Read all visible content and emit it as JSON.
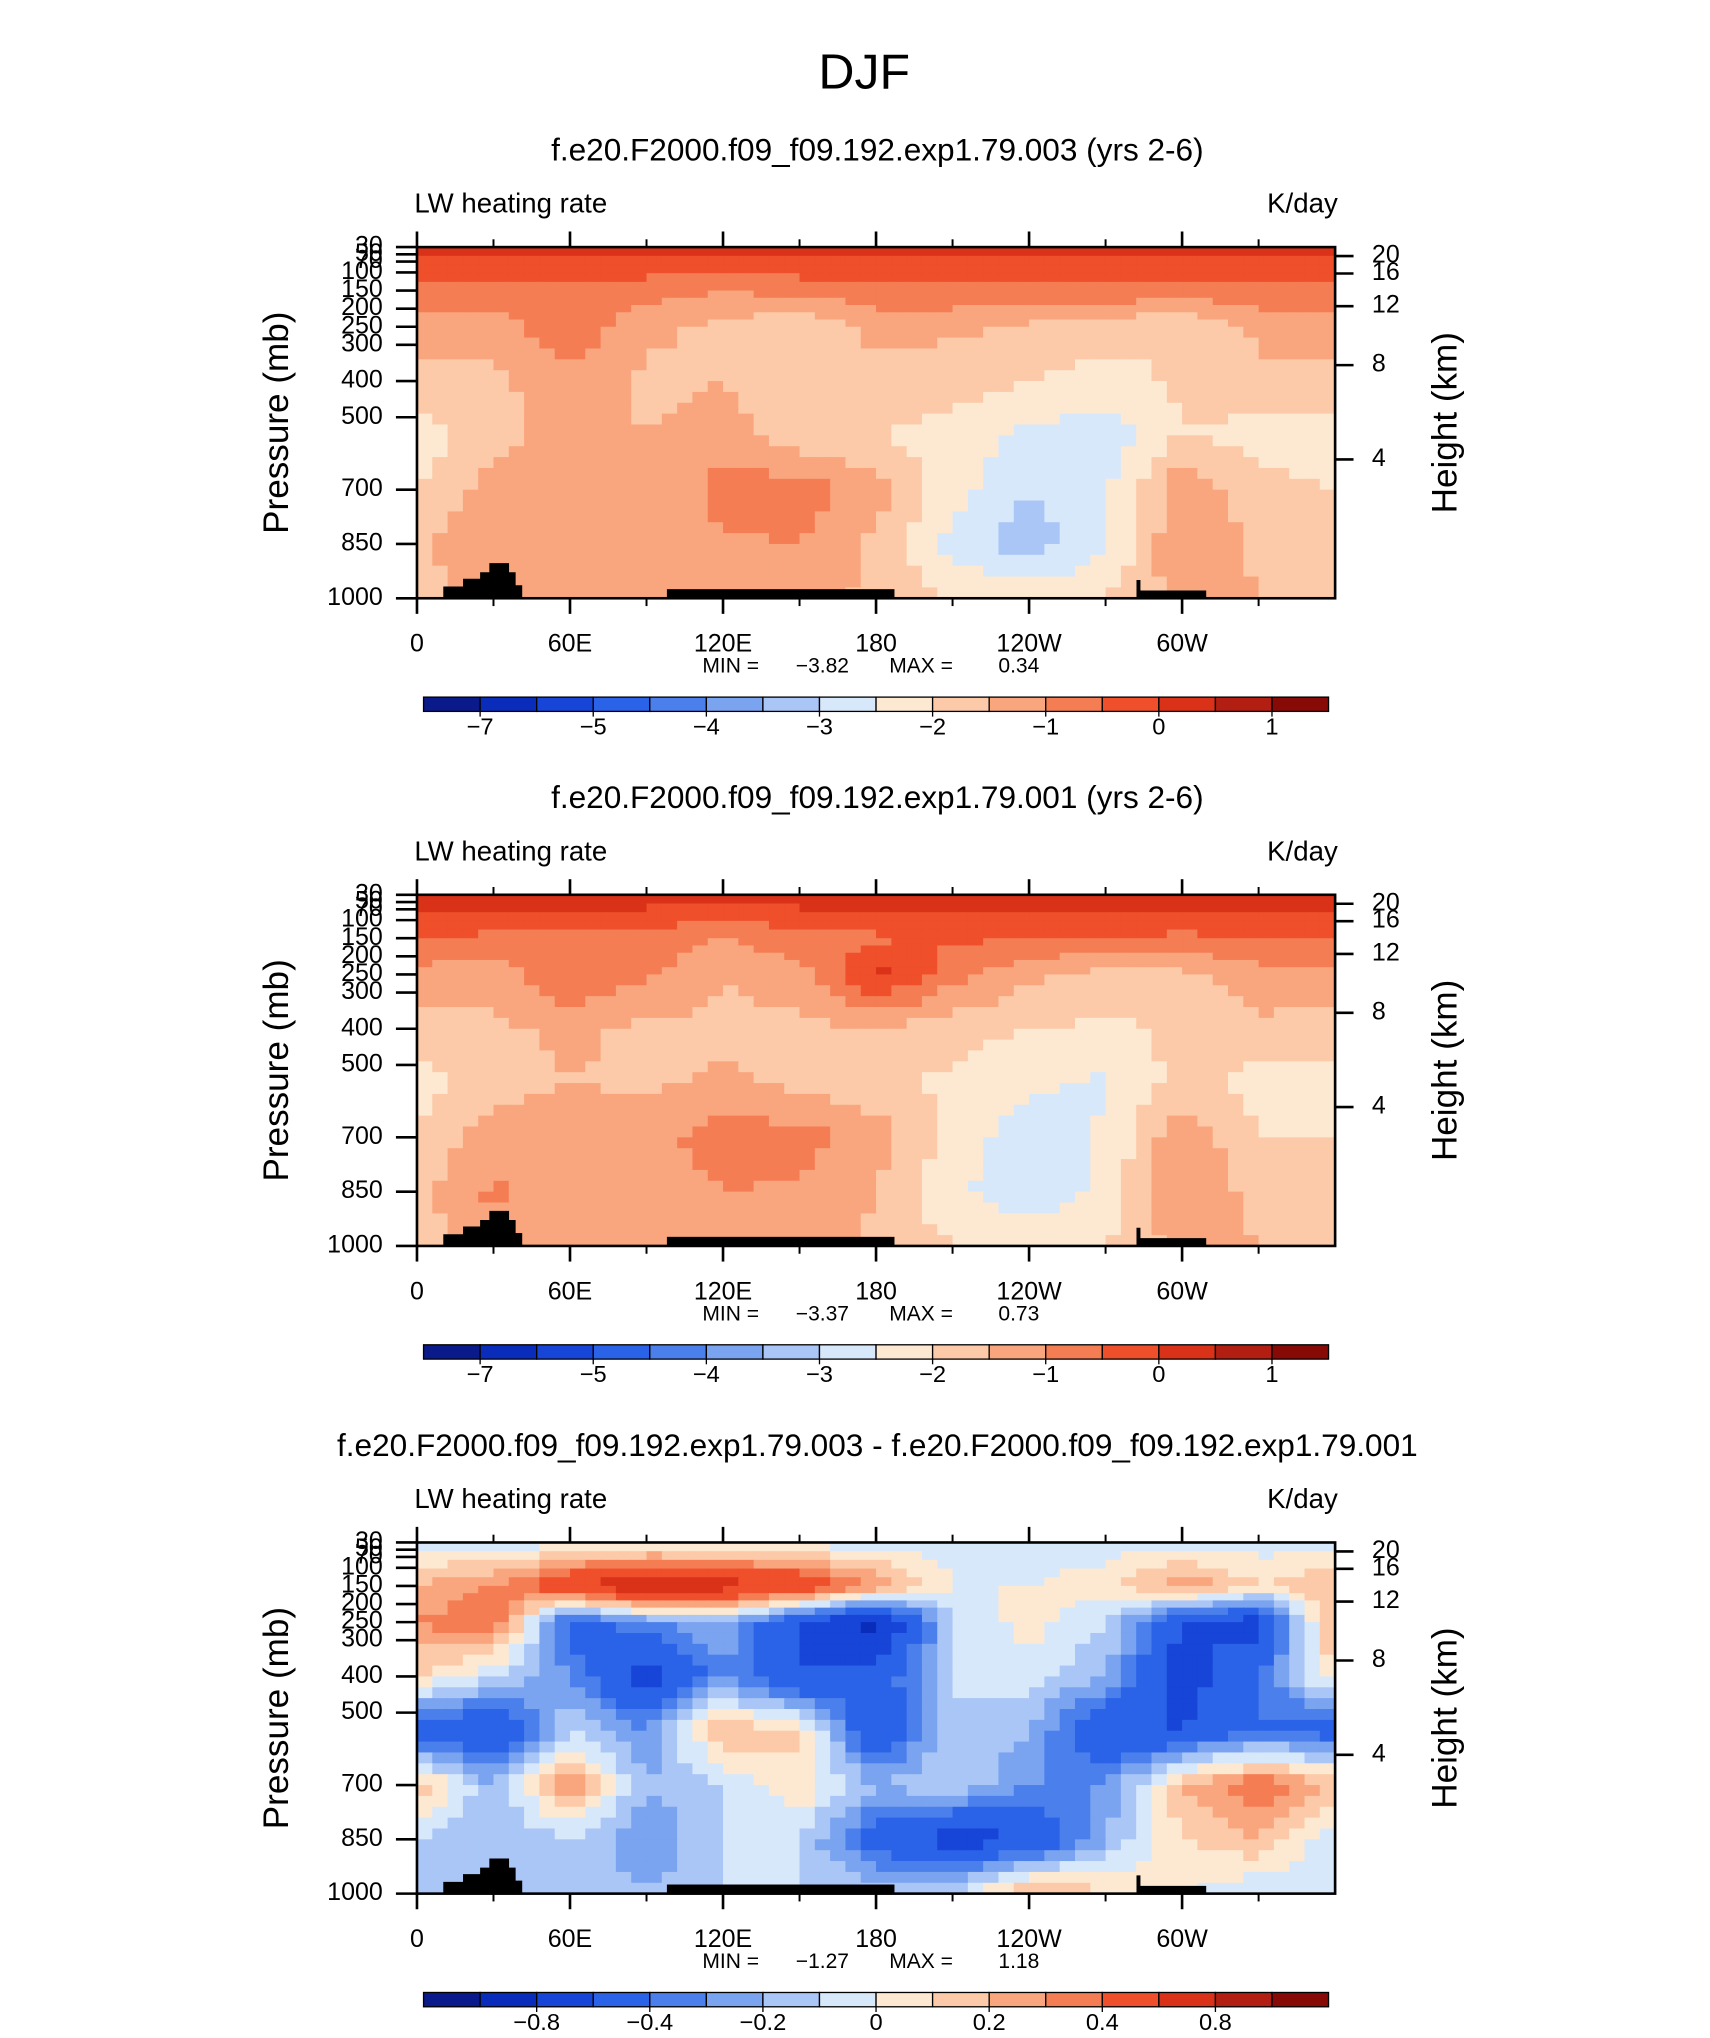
{
  "title": "DJF",
  "chart_data": [
    {
      "type": "contour",
      "title": "f.e20.F2000.f09_f09.192.exp1.79.003 (yrs 2-6)",
      "left_label": "LW heating rate",
      "right_label": "K/day",
      "ylabel": "Pressure (mb)",
      "y2label": "Height (km)",
      "xlim": [
        0,
        360
      ],
      "ylim": [
        1000,
        30
      ],
      "xticks": [
        0,
        {
          "value": 60,
          "label": "60E"
        },
        {
          "value": 120,
          "label": "120E"
        },
        180,
        {
          "value": 240,
          "label": "120W"
        },
        {
          "value": 300,
          "label": "60W"
        }
      ],
      "xminorticks": [
        30,
        90,
        150,
        210,
        270,
        330
      ],
      "yticks": [
        30,
        50,
        70,
        100,
        150,
        200,
        250,
        300,
        400,
        500,
        700,
        850,
        1000
      ],
      "y2ticks": [
        20,
        16,
        12,
        8,
        4
      ],
      "min_text": "MIN =",
      "min": {
        "value": -3.82,
        "label": "−3.82"
      },
      "max_text": "MAX =",
      "max": 0.34,
      "levels": [
        -7,
        -6,
        -5,
        -4.5,
        -4,
        -3.5,
        -3,
        -2.5,
        -2,
        -1.5,
        -1,
        -0.5,
        0,
        0.5,
        1
      ],
      "colorbar_ticks": [
        {
          "value": -7,
          "label": "−7"
        },
        {
          "value": -5,
          "label": "−5"
        },
        {
          "value": -4,
          "label": "−4"
        },
        {
          "value": -3,
          "label": "−3"
        },
        {
          "value": -2,
          "label": "−2"
        },
        {
          "value": -1,
          "label": "−1"
        },
        0,
        1
      ],
      "colors": [
        "#0b1a8a",
        "#0a2cbb",
        "#1745d8",
        "#2a62e8",
        "#4b80ec",
        "#7aa3f0",
        "#a9c6f6",
        "#d8e8fb",
        "#fde9d2",
        "#fccaa8",
        "#f9a67e",
        "#f57d54",
        "#ef4f2a",
        "#d93218",
        "#b21e12",
        "#870a07"
      ],
      "x": [
        0,
        30,
        60,
        90,
        120,
        150,
        180,
        210,
        240,
        270,
        300,
        330,
        360
      ],
      "y": [
        30,
        150,
        250,
        400,
        550,
        700,
        850,
        1000
      ],
      "z": [
        [
          0.2,
          0.2,
          0.2,
          0.2,
          0.2,
          0.2,
          0.2,
          0.2,
          0.2,
          0.2,
          0.2,
          0.2,
          0.2
        ],
        [
          -0.6,
          -0.7,
          -0.6,
          -0.8,
          -1.0,
          -0.8,
          -0.7,
          -0.6,
          -0.6,
          -0.6,
          -0.7,
          -0.6,
          -0.6
        ],
        [
          -1.2,
          -1.3,
          -0.6,
          -1.4,
          -1.6,
          -2.0,
          -1.3,
          -1.4,
          -1.6,
          -1.8,
          -2.0,
          -1.4,
          -1.2
        ],
        [
          -1.7,
          -1.6,
          -1.2,
          -1.6,
          -1.5,
          -1.7,
          -1.7,
          -1.8,
          -2.0,
          -2.2,
          -1.9,
          -1.6,
          -1.7
        ],
        [
          -2.3,
          -1.7,
          -1.3,
          -1.5,
          -1.3,
          -1.8,
          -2.0,
          -2.2,
          -2.6,
          -2.8,
          -2.0,
          -2.2,
          -2.3
        ],
        [
          -2.0,
          -1.3,
          -1.0,
          -1.4,
          -0.8,
          -0.7,
          -1.3,
          -2.3,
          -3.0,
          -2.6,
          -1.1,
          -1.8,
          -2.0
        ],
        [
          -1.6,
          -1.0,
          -1.2,
          -1.4,
          -1.1,
          -1.0,
          -1.6,
          -2.7,
          -3.3,
          -2.6,
          -1.0,
          -1.6,
          -1.6
        ],
        [
          -1.8,
          -1.2,
          -1.4,
          -1.5,
          -1.3,
          -1.3,
          -1.6,
          -2.0,
          -2.2,
          -2.0,
          -1.3,
          -1.5,
          -1.8
        ]
      ]
    },
    {
      "type": "contour",
      "title": "f.e20.F2000.f09_f09.192.exp1.79.001 (yrs 2-6)",
      "left_label": "LW heating rate",
      "right_label": "K/day",
      "ylabel": "Pressure (mb)",
      "y2label": "Height (km)",
      "xlim": [
        0,
        360
      ],
      "ylim": [
        1000,
        30
      ],
      "xticks": [
        0,
        {
          "value": 60,
          "label": "60E"
        },
        {
          "value": 120,
          "label": "120E"
        },
        180,
        {
          "value": 240,
          "label": "120W"
        },
        {
          "value": 300,
          "label": "60W"
        }
      ],
      "xminorticks": [
        30,
        90,
        150,
        210,
        270,
        330
      ],
      "yticks": [
        30,
        50,
        70,
        100,
        150,
        200,
        250,
        300,
        400,
        500,
        700,
        850,
        1000
      ],
      "y2ticks": [
        20,
        16,
        12,
        8,
        4
      ],
      "min_text": "MIN =",
      "min": {
        "value": -3.37,
        "label": "−3.37"
      },
      "max_text": "MAX =",
      "max": 0.73,
      "levels": [
        -7,
        -6,
        -5,
        -4.5,
        -4,
        -3.5,
        -3,
        -2.5,
        -2,
        -1.5,
        -1,
        -0.5,
        0,
        0.5,
        1
      ],
      "colorbar_ticks": [
        {
          "value": -7,
          "label": "−7"
        },
        {
          "value": -5,
          "label": "−5"
        },
        {
          "value": -4,
          "label": "−4"
        },
        {
          "value": -3,
          "label": "−3"
        },
        {
          "value": -2,
          "label": "−2"
        },
        {
          "value": -1,
          "label": "−1"
        },
        0,
        1
      ],
      "colors": [
        "#0b1a8a",
        "#0a2cbb",
        "#1745d8",
        "#2a62e8",
        "#4b80ec",
        "#7aa3f0",
        "#a9c6f6",
        "#d8e8fb",
        "#fde9d2",
        "#fccaa8",
        "#f9a67e",
        "#f57d54",
        "#ef4f2a",
        "#d93218",
        "#b21e12",
        "#870a07"
      ],
      "x": [
        0,
        30,
        60,
        90,
        120,
        150,
        180,
        210,
        240,
        270,
        300,
        330,
        360
      ],
      "y": [
        30,
        150,
        250,
        400,
        550,
        700,
        850,
        1000
      ],
      "z": [
        [
          0.3,
          0.3,
          0.3,
          0.3,
          0.3,
          0.3,
          0.3,
          0.3,
          0.3,
          0.3,
          0.3,
          0.3,
          0.3
        ],
        [
          -0.5,
          -0.6,
          -0.6,
          -0.7,
          -1.0,
          -0.7,
          -0.6,
          -0.4,
          -0.5,
          -0.5,
          -0.6,
          -0.5,
          -0.5
        ],
        [
          -1.2,
          -1.3,
          -0.5,
          -0.9,
          -1.5,
          -1.2,
          0.2,
          -0.8,
          -1.4,
          -1.7,
          -1.6,
          -1.2,
          -1.2
        ],
        [
          -1.7,
          -1.6,
          -1.4,
          -1.6,
          -1.6,
          -1.7,
          -1.5,
          -1.8,
          -2.0,
          -2.1,
          -1.9,
          -1.6,
          -1.7
        ],
        [
          -2.2,
          -1.7,
          -1.5,
          -1.6,
          -1.4,
          -1.6,
          -1.9,
          -2.1,
          -2.4,
          -2.6,
          -1.8,
          -2.2,
          -2.2
        ],
        [
          -2.0,
          -1.2,
          -1.2,
          -1.2,
          -0.7,
          -0.8,
          -1.2,
          -2.2,
          -2.8,
          -2.4,
          -1.1,
          -2.0,
          -2.0
        ],
        [
          -1.6,
          -0.9,
          -1.2,
          -1.3,
          -1.0,
          -1.1,
          -1.5,
          -2.4,
          -2.8,
          -2.4,
          -1.0,
          -1.7,
          -1.6
        ],
        [
          -1.8,
          -1.2,
          -1.4,
          -1.5,
          -1.3,
          -1.3,
          -1.6,
          -2.0,
          -2.2,
          -2.0,
          -1.3,
          -1.5,
          -1.8
        ]
      ]
    },
    {
      "type": "contour",
      "title": "f.e20.F2000.f09_f09.192.exp1.79.003 - f.e20.F2000.f09_f09.192.exp1.79.001",
      "left_label": "LW heating rate",
      "right_label": "K/day",
      "ylabel": "Pressure (mb)",
      "y2label": "Height (km)",
      "xlim": [
        0,
        360
      ],
      "ylim": [
        1000,
        30
      ],
      "xticks": [
        0,
        {
          "value": 60,
          "label": "60E"
        },
        {
          "value": 120,
          "label": "120E"
        },
        180,
        {
          "value": 240,
          "label": "120W"
        },
        {
          "value": 300,
          "label": "60W"
        }
      ],
      "xminorticks": [
        30,
        90,
        150,
        210,
        270,
        330
      ],
      "yticks": [
        30,
        50,
        70,
        100,
        150,
        200,
        250,
        300,
        400,
        500,
        700,
        850,
        1000
      ],
      "y2ticks": [
        20,
        16,
        12,
        8,
        4
      ],
      "min_text": "MIN =",
      "min": {
        "value": -1.27,
        "label": "−1.27"
      },
      "max_text": "MAX =",
      "max": 1.18,
      "levels": [
        -1,
        -0.8,
        -0.6,
        -0.4,
        -0.3,
        -0.2,
        -0.1,
        0,
        0.1,
        0.2,
        0.3,
        0.4,
        0.6,
        0.8,
        1
      ],
      "colorbar_ticks": [
        {
          "value": -0.8,
          "label": "−0.8"
        },
        {
          "value": -0.4,
          "label": "−0.4"
        },
        {
          "value": -0.2,
          "label": "−0.2"
        },
        0,
        0.2,
        0.4,
        0.8
      ],
      "colors": [
        "#0b1a8a",
        "#0a2cbb",
        "#1745d8",
        "#2a62e8",
        "#4b80ec",
        "#7aa3f0",
        "#a9c6f6",
        "#d8e8fb",
        "#fde9d2",
        "#fccaa8",
        "#f9a67e",
        "#f57d54",
        "#ef4f2a",
        "#d93218",
        "#b21e12",
        "#870a07"
      ],
      "x": [
        0,
        30,
        60,
        90,
        120,
        150,
        180,
        210,
        240,
        270,
        300,
        330,
        360
      ],
      "y": [
        30,
        150,
        250,
        400,
        550,
        700,
        850,
        1000
      ],
      "z": [
        [
          -0.05,
          -0.05,
          -0.05,
          -0.05,
          -0.05,
          -0.05,
          -0.05,
          -0.05,
          -0.05,
          -0.05,
          -0.05,
          -0.05,
          -0.05
        ],
        [
          0.2,
          0.3,
          0.6,
          0.8,
          0.7,
          0.6,
          0.3,
          0,
          0,
          0.05,
          0.3,
          0.1,
          0.2
        ],
        [
          0.3,
          0.4,
          -0.5,
          -0.3,
          -0.2,
          -0.6,
          -0.9,
          -0.1,
          0.05,
          -0.1,
          -0.6,
          -0.7,
          0.3
        ],
        [
          0.1,
          -0.1,
          -0.3,
          -0.7,
          -0.3,
          -0.6,
          -0.5,
          -0.1,
          -0.05,
          -0.2,
          -0.7,
          -0.4,
          0.1
        ],
        [
          -0.5,
          -0.6,
          -0.1,
          -0.3,
          0.2,
          0.1,
          -0.6,
          -0.1,
          -0.2,
          -0.6,
          -0.6,
          -0.4,
          -0.5
        ],
        [
          0.2,
          -0.2,
          0.3,
          -0.2,
          -0.1,
          0.1,
          -0.2,
          -0.1,
          -0.3,
          -0.3,
          0.2,
          0.4,
          0.2
        ],
        [
          -0.1,
          -0.2,
          -0.1,
          -0.3,
          -0.1,
          -0.1,
          -0.5,
          -0.7,
          -0.6,
          -0.2,
          0.1,
          0.2,
          -0.1
        ],
        [
          -0.1,
          -0.1,
          -0.1,
          -0.2,
          -0.1,
          -0.1,
          -0.1,
          -0.1,
          0.3,
          0.1,
          0,
          -0.1,
          -0.1
        ]
      ]
    }
  ]
}
